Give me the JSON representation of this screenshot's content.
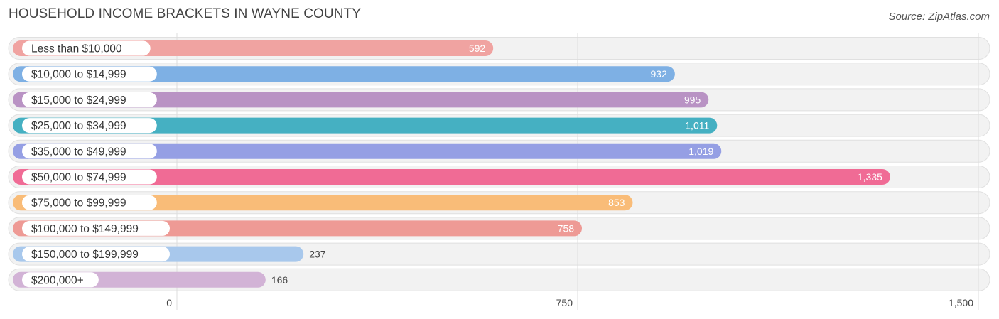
{
  "title": "HOUSEHOLD INCOME BRACKETS IN WAYNE COUNTY",
  "source": "Source: ZipAtlas.com",
  "chart_data": {
    "type": "bar",
    "orientation": "horizontal",
    "title": "HOUSEHOLD INCOME BRACKETS IN WAYNE COUNTY",
    "categories": [
      "Less than $10,000",
      "$10,000 to $14,999",
      "$15,000 to $24,999",
      "$25,000 to $34,999",
      "$35,000 to $49,999",
      "$50,000 to $74,999",
      "$75,000 to $99,999",
      "$100,000 to $149,999",
      "$150,000 to $199,999",
      "$200,000+"
    ],
    "values": [
      592,
      932,
      995,
      1011,
      1019,
      1335,
      853,
      758,
      237,
      166
    ],
    "value_labels": [
      "592",
      "932",
      "995",
      "1,011",
      "1,019",
      "1,335",
      "853",
      "758",
      "237",
      "166"
    ],
    "colors": [
      "#f0a3a1",
      "#7eb0e4",
      "#b993c4",
      "#45b0c2",
      "#959fe4",
      "#f06b95",
      "#f9bc78",
      "#ee9a95",
      "#a8c8ec",
      "#d2b3d6"
    ],
    "xlim": [
      0,
      1500
    ],
    "xticks": [
      0,
      750,
      1500
    ],
    "xtick_labels": [
      "0",
      "750",
      "1,500"
    ],
    "grid": true
  }
}
